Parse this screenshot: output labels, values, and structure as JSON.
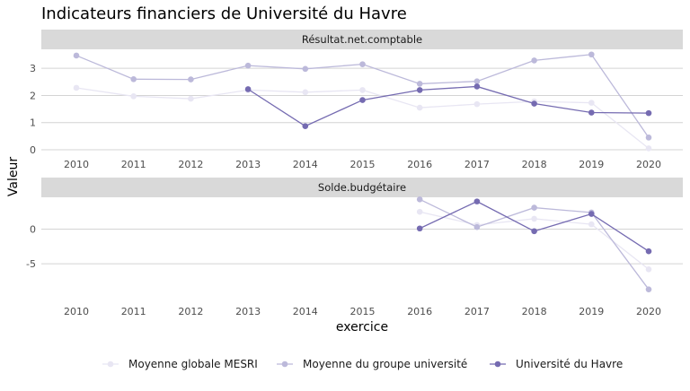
{
  "chart_data": {
    "type": "line",
    "title": "Indicateurs financiers de Université du Havre",
    "xlabel": "exercice",
    "ylabel": "Valeur",
    "x": [
      2010,
      2011,
      2012,
      2013,
      2014,
      2015,
      2016,
      2017,
      2018,
      2019,
      2020
    ],
    "x_ticks": [
      "2010",
      "2011",
      "2012",
      "2013",
      "2014",
      "2015",
      "2016",
      "2017",
      "2018",
      "2019",
      "2020"
    ],
    "series_names": [
      "Moyenne globale MESRI",
      "Moyenne du groupe université",
      "Université du Havre"
    ],
    "colors": [
      "#e8e6f3",
      "#bcb9da",
      "#756bb1"
    ],
    "legend_position": "bottom",
    "panels": [
      {
        "title": "Résultat.net.comptable",
        "ylim": [
          -0.1,
          3.7
        ],
        "yticks": [
          0,
          1,
          2,
          3
        ],
        "ytick_labels": [
          "0",
          "1",
          "2",
          "3"
        ],
        "series": [
          {
            "name": "Moyenne globale MESRI",
            "values": [
              2.28,
              1.97,
              1.88,
              2.2,
              2.12,
              2.2,
              1.55,
              1.68,
              1.78,
              1.73,
              0.05
            ]
          },
          {
            "name": "Moyenne du groupe université",
            "values": [
              3.47,
              2.6,
              2.59,
              3.1,
              2.98,
              3.15,
              2.43,
              2.52,
              3.29,
              3.51,
              0.45
            ]
          },
          {
            "name": "Université du Havre",
            "values": [
              null,
              null,
              null,
              2.23,
              0.87,
              1.83,
              2.2,
              2.33,
              1.7,
              1.37,
              1.35
            ]
          }
        ]
      },
      {
        "title": "Solde.budgétaire",
        "ylim": [
          -9.0,
          4.6
        ],
        "yticks": [
          -5,
          0
        ],
        "ytick_labels": [
          "-5",
          "0"
        ],
        "series": [
          {
            "name": "Moyenne globale MESRI",
            "values": [
              null,
              null,
              null,
              null,
              null,
              null,
              2.5,
              0.6,
              1.5,
              0.7,
              -5.8
            ]
          },
          {
            "name": "Moyenne du groupe université",
            "values": [
              null,
              null,
              null,
              null,
              null,
              null,
              4.3,
              0.3,
              3.1,
              2.4,
              -8.7
            ]
          },
          {
            "name": "Université du Havre",
            "values": [
              null,
              null,
              null,
              null,
              null,
              null,
              0.1,
              4.0,
              -0.3,
              2.2,
              -3.2
            ]
          }
        ]
      }
    ]
  }
}
